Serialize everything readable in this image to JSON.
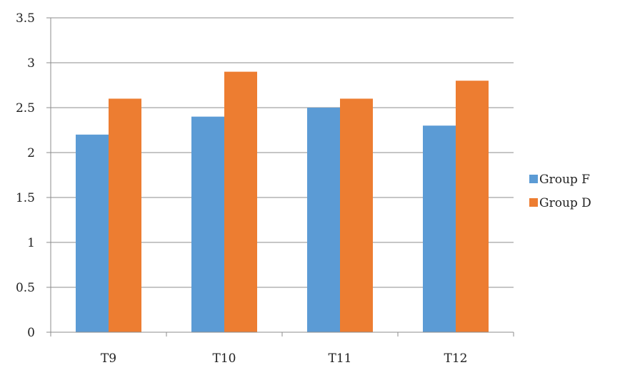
{
  "chart_data": {
    "type": "bar",
    "title": "",
    "xlabel": "",
    "ylabel": "",
    "categories": [
      "T9",
      "T10",
      "T11",
      "T12"
    ],
    "series": [
      {
        "name": "Group F",
        "values": [
          2.2,
          2.4,
          2.5,
          2.3
        ],
        "color": "#5b9bd5"
      },
      {
        "name": "Group D",
        "values": [
          2.6,
          2.9,
          2.6,
          2.8
        ],
        "color": "#ed7d31"
      }
    ],
    "ylim": [
      0,
      3.5
    ],
    "yticks": [
      "0",
      "0.5",
      "1",
      "1.5",
      "2",
      "2.5",
      "3",
      "3.5"
    ],
    "grid": true,
    "legend_position": "right"
  }
}
